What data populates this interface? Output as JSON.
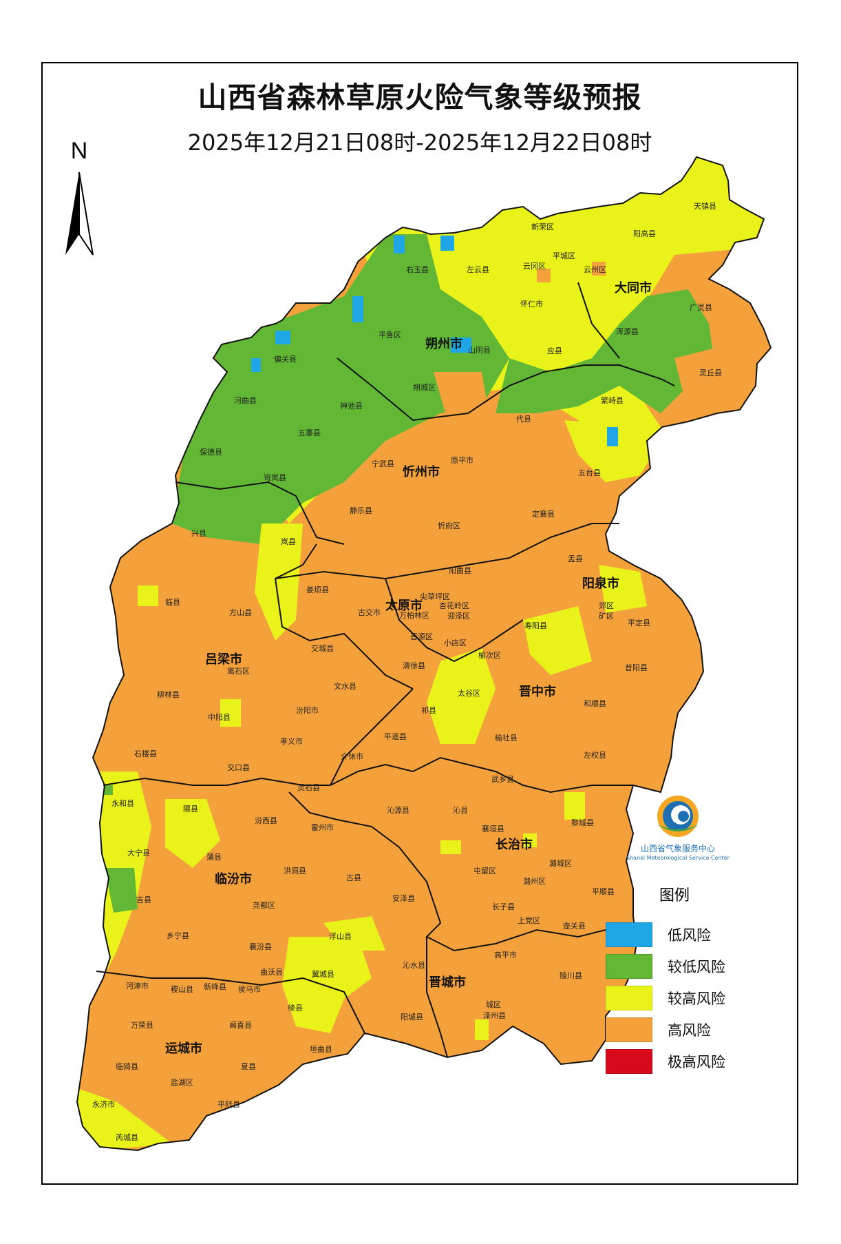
{
  "title": "山西省森林草原火险气象等级预报",
  "subtitle": "2025年12月21日08时-2025年12月22日08时",
  "north": "N",
  "logo": {
    "name_cn": "山西省气象服务中心",
    "name_en": "Shanxi Meteorological Service Center"
  },
  "legend": {
    "title": "图例",
    "items": [
      {
        "label": "低风险",
        "color": "#1ea6e6"
      },
      {
        "label": "较低风险",
        "color": "#62b735"
      },
      {
        "label": "较高风险",
        "color": "#e9f31a"
      },
      {
        "label": "高风险",
        "color": "#f4a13b"
      },
      {
        "label": "极高风险",
        "color": "#d70a1c"
      }
    ]
  },
  "cities": {
    "datong": "大同市",
    "shuozhou": "朔州市",
    "xinzhou": "忻州市",
    "taiyuan": "太原市",
    "yangquan": "阳泉市",
    "lvliang": "吕梁市",
    "jinzhong": "晋中市",
    "changzhi": "长治市",
    "linfen": "临汾市",
    "jincheng": "晋城市",
    "yuncheng": "运城市"
  },
  "counties": {
    "tianzhen": "天镇县",
    "xinrong": "新荣区",
    "yanggao": "阳高县",
    "pingcheng": "平城区",
    "youyu": "右玉县",
    "zuoyun": "左云县",
    "yungang": "云冈区",
    "yunzhou": "云州区",
    "huairen": "怀仁市",
    "guangling": "广灵县",
    "pinglu": "平鲁区",
    "hunyuan": "浑源县",
    "shanyin": "山阴县",
    "yingxian": "应县",
    "piananguan": "偏关县",
    "lingqiu": "灵丘县",
    "hequ": "河曲县",
    "shenchi": "神池县",
    "shuocheng": "朔城区",
    "fanshi": "繁峙县",
    "daixian": "代县",
    "wuzhai": "五寨县",
    "baode": "保德县",
    "kelan": "岢岚县",
    "ningwu": "宁武县",
    "yuanping": "原平市",
    "wutai": "五台县",
    "dingxiang": "定襄县",
    "jingle": "静乐县",
    "xinfu": "忻府区",
    "xingxian": "兴县",
    "lanxian": "岚县",
    "yangqu": "阳曲县",
    "yuxian": "盂县",
    "linxian": "临县",
    "loufan": "娄烦县",
    "jiancaoping": "尖草坪区",
    "fangshan": "方山县",
    "gujiao": "古交市",
    "wanbailin": "万柏林区",
    "xinghualing": "杏花岭区",
    "yingze": "迎泽区",
    "jiaoqu": "郊区",
    "kuangqu": "矿区",
    "pingding": "平定县",
    "shouyang": "寿阳县",
    "jinyuan": "晋源区",
    "xiaodian": "小店区",
    "jiaocheng": "交城县",
    "lishi": "离石区",
    "qingxu": "清徐县",
    "yuci": "榆次区",
    "xiyang": "昔阳县",
    "wenshui": "文水县",
    "liulin": "柳林县",
    "fenyang": "汾阳市",
    "taigu": "太谷区",
    "heshun": "和顺县",
    "zhongyang": "中阳县",
    "qixian": "祁县",
    "pingyao": "平遥县",
    "xiaoyi": "孝义市",
    "yushe": "榆社县",
    "shilou": "石楼县",
    "jiexiu": "介休市",
    "zuoquan": "左权县",
    "jiaokou": "交口县",
    "wuxiang": "武乡县",
    "lingshi": "灵石县",
    "yonghe": "永和县",
    "xixian": "隰县",
    "fenxi": "汾西县",
    "qinyuan": "沁源县",
    "qinxian": "沁县",
    "xiangyuan": "襄垣县",
    "licheng": "黎城县",
    "huozhou": "霍州市",
    "daning": "大宁县",
    "puxian": "蒲县",
    "hongdong": "洪洞县",
    "guxian": "古县",
    "lucheng": "潞城区",
    "tunliu": "屯留区",
    "luzhou": "潞州区",
    "anze": "安泽县",
    "jixian": "吉县",
    "pingshun": "平顺县",
    "yaodu": "尧都区",
    "zhangzi": "长子县",
    "shangdang": "上党区",
    "huguan": "壶关县",
    "xiangning": "乡宁县",
    "xiangfen": "襄汾县",
    "fushan": "浮山县",
    "quwo": "曲沃县",
    "yicheng": "翼城县",
    "qinshui": "沁水县",
    "gaoping": "高平市",
    "lingchuan": "陵川县",
    "hejin": "河津市",
    "jishan": "稷山县",
    "xinjiang": "新绛县",
    "houma": "侯马市",
    "jiangxian": "绛县",
    "yangcheng": "阳城县",
    "chengqu": "城区",
    "zezhou": "泽州县",
    "wanrong": "万荣县",
    "wenxi": "闻喜县",
    "yuanqu": "垣曲县",
    "linyi": "临猗县",
    "xiaxian": "夏县",
    "yanhu": "盐湖区",
    "yongji": "永济市",
    "pinglux": "平陆县",
    "ruicheng": "芮城县"
  }
}
